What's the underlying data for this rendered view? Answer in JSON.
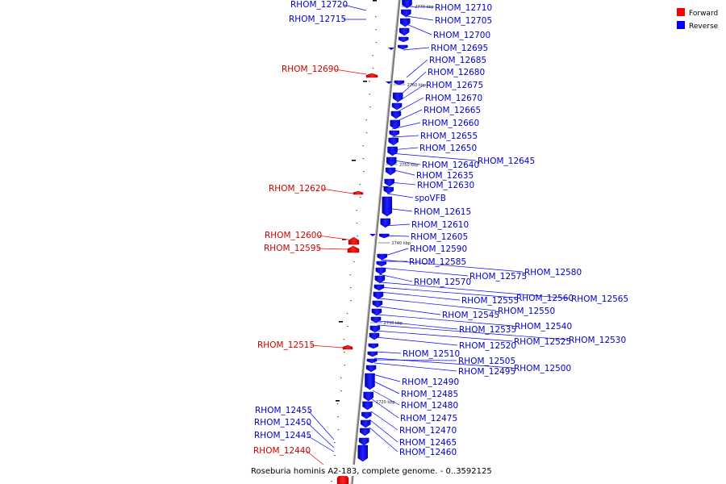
{
  "caption": "Roseburia hominis A2-183, complete genome. - 0..3592125",
  "legend": [
    {
      "label": "Forward",
      "color": "#ff0000"
    },
    {
      "label": "Reverse",
      "color": "#0000ff"
    }
  ],
  "colors": {
    "forward": "#ff0000",
    "reverse": "#0000ff",
    "forward_label": "#cc0000",
    "reverse_label": "#0000cc",
    "axis": "#888888"
  },
  "ticks": [
    "2770 kbp",
    "2760 kbp",
    "2750 kbp",
    "2740 kbp",
    "2730 kbp",
    "2720 kbp"
  ],
  "forward_genes": [
    "RHOM_12720",
    "RHOM_12715",
    "RHOM_12690",
    "RHOM_12620",
    "RHOM_12600",
    "RHOM_12595",
    "RHOM_12515",
    "RHOM_12455",
    "RHOM_12450",
    "RHOM_12445",
    "RHOM_12440"
  ],
  "reverse_genes": [
    "RHOM_12710",
    "RHOM_12705",
    "RHOM_12700",
    "RHOM_12695",
    "RHOM_12685",
    "RHOM_12680",
    "RHOM_12675",
    "RHOM_12670",
    "RHOM_12665",
    "RHOM_12660",
    "RHOM_12655",
    "RHOM_12650",
    "RHOM_12645",
    "RHOM_12640",
    "RHOM_12635",
    "RHOM_12630",
    "spoVFB",
    "RHOM_12615",
    "RHOM_12610",
    "RHOM_12605",
    "RHOM_12590",
    "RHOM_12585",
    "RHOM_12580",
    "RHOM_12575",
    "RHOM_12570",
    "RHOM_12565",
    "RHOM_12560",
    "RHOM_12555",
    "RHOM_12550",
    "RHOM_12545",
    "RHOM_12540",
    "RHOM_12535",
    "RHOM_12530",
    "RHOM_12525",
    "RHOM_12520",
    "RHOM_12510",
    "RHOM_12505",
    "RHOM_12500",
    "RHOM_12495",
    "RHOM_12490",
    "RHOM_12485",
    "RHOM_12480",
    "RHOM_12475",
    "RHOM_12470",
    "RHOM_12465",
    "RHOM_12460"
  ]
}
